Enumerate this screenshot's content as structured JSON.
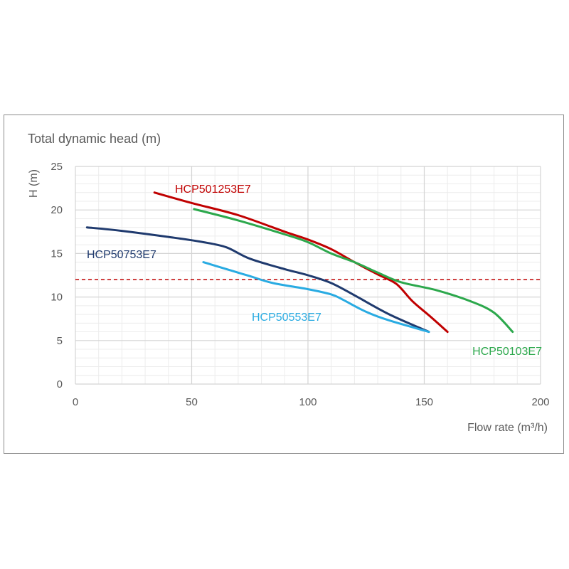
{
  "chart_data": {
    "type": "line",
    "title": "Total dynamic head (m)",
    "xlabel": "Flow rate (m³/h)",
    "ylabel": "H (m)",
    "xlim": [
      0,
      200
    ],
    "ylim": [
      0,
      25
    ],
    "x_ticks": [
      0,
      50,
      100,
      150,
      200
    ],
    "y_ticks": [
      0,
      5,
      10,
      15,
      20,
      25
    ],
    "grid": true,
    "legend": "none",
    "reference_line": {
      "y": 12,
      "style": "dashed",
      "color": "#c00000"
    },
    "series": [
      {
        "name": "HCP501253E7",
        "color": "#c00000",
        "points": [
          [
            34,
            22
          ],
          [
            50,
            20.8
          ],
          [
            70,
            19.4
          ],
          [
            90,
            17.5
          ],
          [
            100,
            16.6
          ],
          [
            110,
            15.5
          ],
          [
            120,
            14
          ],
          [
            130,
            12.6
          ],
          [
            138,
            11.5
          ],
          [
            145,
            9.5
          ],
          [
            152,
            7.9
          ],
          [
            160,
            6
          ]
        ]
      },
      {
        "name": "HCP50103E7",
        "color": "#2ca84c",
        "points": [
          [
            51,
            20.1
          ],
          [
            70,
            18.8
          ],
          [
            90,
            17.2
          ],
          [
            100,
            16.3
          ],
          [
            110,
            15
          ],
          [
            120,
            14
          ],
          [
            130,
            12.8
          ],
          [
            140,
            11.7
          ],
          [
            155,
            10.8
          ],
          [
            170,
            9.5
          ],
          [
            180,
            8.2
          ],
          [
            188,
            6
          ]
        ]
      },
      {
        "name": "HCP50753E7",
        "color": "#1f3a6e",
        "points": [
          [
            5,
            18
          ],
          [
            20,
            17.6
          ],
          [
            40,
            16.9
          ],
          [
            55,
            16.3
          ],
          [
            65,
            15.7
          ],
          [
            75,
            14.4
          ],
          [
            90,
            13.2
          ],
          [
            100,
            12.5
          ],
          [
            110,
            11.6
          ],
          [
            120,
            10.2
          ],
          [
            135,
            8
          ],
          [
            152,
            6
          ]
        ]
      },
      {
        "name": "HCP50553E7",
        "color": "#29abe2",
        "points": [
          [
            55,
            14
          ],
          [
            65,
            13.2
          ],
          [
            75,
            12.4
          ],
          [
            85,
            11.6
          ],
          [
            100,
            10.9
          ],
          [
            110,
            10.3
          ],
          [
            115,
            9.7
          ],
          [
            125,
            8.3
          ],
          [
            135,
            7.3
          ],
          [
            152,
            6
          ]
        ]
      }
    ]
  }
}
